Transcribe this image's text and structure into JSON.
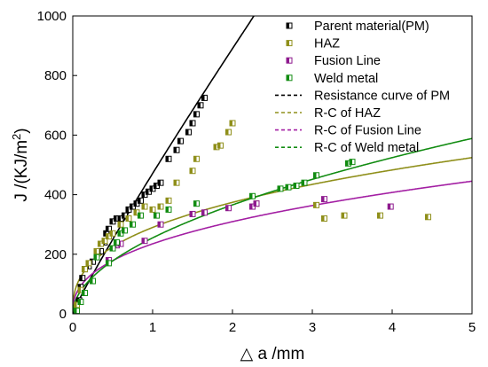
{
  "chart_data": {
    "type": "scatter",
    "xlabel": "△ a /mm",
    "ylabel": "J /(KJ/m²)",
    "ylabel_main": "J /(KJ/m",
    "ylabel_sup": "2",
    "ylabel_tail": ")",
    "xlim": [
      0,
      5
    ],
    "ylim": [
      0,
      1000
    ],
    "x_ticks": [
      "0",
      "1",
      "2",
      "3",
      "4",
      "5"
    ],
    "y_ticks": [
      "0",
      "200",
      "400",
      "600",
      "800",
      "1000"
    ],
    "grid": false,
    "legend_position": "top-right",
    "series": [
      {
        "name": "Parent material(PM)",
        "kind": "points",
        "color": "#000000",
        "points": [
          [
            0.05,
            20
          ],
          [
            0.08,
            45
          ],
          [
            0.1,
            90
          ],
          [
            0.12,
            120
          ],
          [
            0.15,
            150
          ],
          [
            0.2,
            160
          ],
          [
            0.25,
            175
          ],
          [
            0.3,
            195
          ],
          [
            0.35,
            210
          ],
          [
            0.4,
            240
          ],
          [
            0.42,
            270
          ],
          [
            0.45,
            285
          ],
          [
            0.5,
            310
          ],
          [
            0.55,
            320
          ],
          [
            0.6,
            320
          ],
          [
            0.65,
            330
          ],
          [
            0.7,
            350
          ],
          [
            0.75,
            360
          ],
          [
            0.8,
            370
          ],
          [
            0.85,
            380
          ],
          [
            0.9,
            400
          ],
          [
            0.95,
            410
          ],
          [
            1.0,
            420
          ],
          [
            1.05,
            430
          ],
          [
            1.1,
            440
          ],
          [
            1.2,
            520
          ],
          [
            1.3,
            550
          ],
          [
            1.35,
            580
          ],
          [
            1.45,
            610
          ],
          [
            1.5,
            640
          ],
          [
            1.55,
            670
          ],
          [
            1.6,
            700
          ],
          [
            1.65,
            725
          ]
        ]
      },
      {
        "name": "HAZ",
        "kind": "points",
        "color": "#8f8f1a",
        "points": [
          [
            0.05,
            30
          ],
          [
            0.1,
            80
          ],
          [
            0.15,
            150
          ],
          [
            0.2,
            170
          ],
          [
            0.3,
            210
          ],
          [
            0.35,
            235
          ],
          [
            0.4,
            245
          ],
          [
            0.45,
            260
          ],
          [
            0.5,
            270
          ],
          [
            0.6,
            300
          ],
          [
            0.7,
            320
          ],
          [
            0.8,
            340
          ],
          [
            0.9,
            360
          ],
          [
            1.0,
            350
          ],
          [
            1.1,
            360
          ],
          [
            1.2,
            380
          ],
          [
            1.3,
            440
          ],
          [
            1.5,
            480
          ],
          [
            1.55,
            520
          ],
          [
            1.8,
            560
          ],
          [
            1.85,
            565
          ],
          [
            1.95,
            610
          ],
          [
            2.0,
            640
          ],
          [
            2.3,
            370
          ],
          [
            3.05,
            365
          ],
          [
            3.15,
            320
          ],
          [
            3.4,
            330
          ],
          [
            3.85,
            330
          ],
          [
            4.45,
            325
          ]
        ]
      },
      {
        "name": "Fusion Line",
        "kind": "points",
        "color": "#8e1a8e",
        "points": [
          [
            0.45,
            180
          ],
          [
            0.55,
            230
          ],
          [
            0.6,
            235
          ],
          [
            0.9,
            245
          ],
          [
            1.1,
            300
          ],
          [
            1.5,
            335
          ],
          [
            1.65,
            340
          ],
          [
            1.95,
            355
          ],
          [
            2.25,
            360
          ],
          [
            2.3,
            370
          ],
          [
            3.15,
            385
          ],
          [
            3.98,
            360
          ]
        ]
      },
      {
        "name": "Weld metal",
        "kind": "points",
        "color": "#128c12",
        "points": [
          [
            0.05,
            10
          ],
          [
            0.1,
            40
          ],
          [
            0.15,
            70
          ],
          [
            0.25,
            110
          ],
          [
            0.3,
            190
          ],
          [
            0.45,
            170
          ],
          [
            0.5,
            220
          ],
          [
            0.55,
            240
          ],
          [
            0.6,
            270
          ],
          [
            0.65,
            280
          ],
          [
            0.75,
            300
          ],
          [
            0.85,
            330
          ],
          [
            1.05,
            330
          ],
          [
            1.2,
            350
          ],
          [
            1.55,
            370
          ],
          [
            2.25,
            395
          ],
          [
            2.6,
            420
          ],
          [
            2.7,
            425
          ],
          [
            2.8,
            430
          ],
          [
            2.9,
            440
          ],
          [
            3.05,
            465
          ],
          [
            3.45,
            505
          ],
          [
            3.5,
            510
          ]
        ]
      },
      {
        "name": "Resistance curve of PM",
        "kind": "curve",
        "color": "#000000",
        "model": "power",
        "a": 1.25,
        "c": 470,
        "p": 0.92
      },
      {
        "name": "R-C of HAZ",
        "kind": "curve",
        "color": "#8f8f1a",
        "model": "power",
        "a": 0,
        "c": 290,
        "p": 0.368
      },
      {
        "name": "R-C of Fusion Line",
        "kind": "curve",
        "color": "#a31fa3",
        "model": "power",
        "a": 0,
        "c": 235,
        "p": 0.397
      },
      {
        "name": "R-C of Weld metal",
        "kind": "curve",
        "color": "#128c12",
        "model": "power",
        "a": 0,
        "c": 255,
        "p": 0.52
      }
    ]
  }
}
